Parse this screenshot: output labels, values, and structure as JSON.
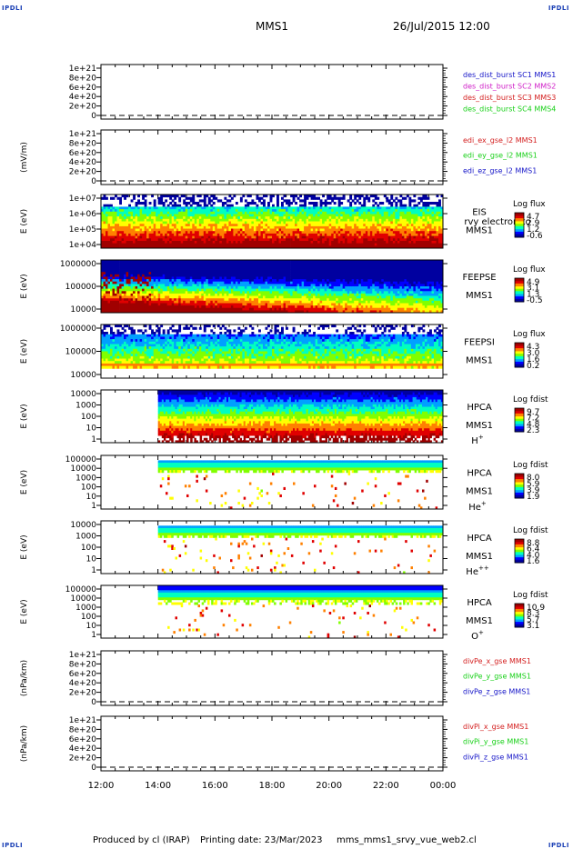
{
  "header": {
    "corner_tag": "IPDLI",
    "spacecraft": "MMS1",
    "datetime": "26/Jul/2015 12:00"
  },
  "footer": {
    "producer": "Produced by cl (IRAP)",
    "printing_date": "Printing date: 23/Mar/2023",
    "script": "mms_mms1_srvy_vue_web2.cl"
  },
  "colors": {
    "red": "#d42020",
    "magenta": "#d020c8",
    "green": "#18d018",
    "blue": "#1515c8",
    "colormap": [
      "#0000a0",
      "#0000ff",
      "#00a0ff",
      "#00ffc0",
      "#80ff00",
      "#ffff00",
      "#ff8000",
      "#e00000",
      "#a00000"
    ]
  },
  "time_axis": {
    "start": "12:00",
    "end": "00:00",
    "ticks": [
      "12:00",
      "14:00",
      "16:00",
      "18:00",
      "20:00",
      "22:00",
      "00:00"
    ]
  },
  "chart_data": [
    {
      "id": "des",
      "type": "line",
      "ylabel": "",
      "yticks": [
        "1e+21",
        "8e+20",
        "6e+20",
        "4e+20",
        "2e+20",
        "0"
      ],
      "ylim": [
        0,
        1e+21
      ],
      "series": [
        {
          "name": "des_dist_burst SC1 MMS1",
          "color": "#1515c8",
          "values": []
        },
        {
          "name": "des_dist_burst SC2 MMS2",
          "color": "#d020c8",
          "values": []
        },
        {
          "name": "des_dist_burst SC3 MMS3",
          "color": "#d42020",
          "values": []
        },
        {
          "name": "des_dist_burst SC4 MMS4",
          "color": "#18d018",
          "values": []
        }
      ]
    },
    {
      "id": "edi",
      "type": "line",
      "ylabel": "(mV/m)",
      "yticks": [
        "1e+21",
        "8e+20",
        "6e+20",
        "4e+20",
        "2e+20",
        "0"
      ],
      "ylim": [
        0,
        1e+21
      ],
      "series": [
        {
          "name": "edi_ex_gse_l2 MMS1",
          "color": "#d42020",
          "values": []
        },
        {
          "name": "edi_ey_gse_l2 MMS1",
          "color": "#18d018",
          "values": []
        },
        {
          "name": "edi_ez_gse_l2 MMS1",
          "color": "#1515c8",
          "values": []
        }
      ]
    },
    {
      "id": "eis",
      "type": "heatmap",
      "ylabel": "E (eV)",
      "log_y": true,
      "yticks": [
        "1e+07",
        "1e+06",
        "1e+05",
        "1e+04"
      ],
      "ylim": [
        10000.0,
        10000000.0
      ],
      "instrument": [
        "EIS",
        "MMS1"
      ],
      "overlay": "rvy electron to",
      "cbar_title": "Log flux",
      "cbar_ticks": [
        "4.7",
        "2.9",
        "1.2",
        "-0.6"
      ]
    },
    {
      "id": "feepse",
      "type": "heatmap",
      "ylabel": "E (eV)",
      "log_y": true,
      "yticks": [
        "1000000",
        "100000",
        "10000"
      ],
      "ylim": [
        10000.0,
        1000000.0
      ],
      "instrument": [
        "FEEPSE",
        "MMS1"
      ],
      "cbar_title": "Log flux",
      "cbar_ticks": [
        "4.9",
        "3.1",
        "1.3",
        "-0.5"
      ]
    },
    {
      "id": "feepsi",
      "type": "heatmap",
      "ylabel": "E (eV)",
      "log_y": true,
      "yticks": [
        "1000000",
        "100000",
        "10000"
      ],
      "ylim": [
        10000.0,
        1000000.0
      ],
      "instrument": [
        "FEEPSI",
        "MMS1"
      ],
      "cbar_title": "Log flux",
      "cbar_ticks": [
        "4.3",
        "3.0",
        "1.6",
        "0.2"
      ]
    },
    {
      "id": "hpca_h",
      "type": "heatmap",
      "ylabel": "E (eV)",
      "log_y": true,
      "yticks": [
        "10000",
        "1000",
        "100",
        "10",
        "1"
      ],
      "ylim": [
        1,
        40000
      ],
      "instrument": [
        "HPCA",
        "MMS1"
      ],
      "species": "H",
      "species_sup": "+",
      "cbar_title": "Log fdist",
      "cbar_ticks": [
        "9.7",
        "7.2",
        "4.8",
        "2.3"
      ]
    },
    {
      "id": "hpca_he1",
      "type": "heatmap",
      "ylabel": "E (eV)",
      "log_y": true,
      "yticks": [
        "100000",
        "10000",
        "1000",
        "100",
        "10",
        "1"
      ],
      "ylim": [
        1,
        100000
      ],
      "instrument": [
        "HPCA",
        "MMS1"
      ],
      "species": "He",
      "species_sup": "+",
      "cbar_title": "Log fdist",
      "cbar_ticks": [
        "8.0",
        "5.9",
        "3.9",
        "1.9"
      ]
    },
    {
      "id": "hpca_he2",
      "type": "heatmap",
      "ylabel": "E (eV)",
      "log_y": true,
      "yticks": [
        "10000",
        "1000",
        "100",
        "10",
        "1"
      ],
      "ylim": [
        1,
        40000
      ],
      "instrument": [
        "HPCA",
        "MMS1"
      ],
      "species": "He",
      "species_sup": "++",
      "cbar_title": "Log fdist",
      "cbar_ticks": [
        "8.8",
        "6.4",
        "4.0",
        "1.6"
      ]
    },
    {
      "id": "hpca_o",
      "type": "heatmap",
      "ylabel": "E (eV)",
      "log_y": true,
      "yticks": [
        "100000",
        "10000",
        "1000",
        "100",
        "10",
        "1"
      ],
      "ylim": [
        1,
        100000
      ],
      "instrument": [
        "HPCA",
        "MMS1"
      ],
      "species": "O",
      "species_sup": "+",
      "cbar_title": "Log fdist",
      "cbar_ticks": [
        "10.9",
        "8.3",
        "5.7",
        "3.1"
      ]
    },
    {
      "id": "divpe",
      "type": "line",
      "ylabel": "(nPa/km)",
      "yticks": [
        "1e+21",
        "8e+20",
        "6e+20",
        "4e+20",
        "2e+20",
        "0"
      ],
      "ylim": [
        0,
        1e+21
      ],
      "series": [
        {
          "name": "divPe_x_gse MMS1",
          "color": "#d42020",
          "values": []
        },
        {
          "name": "divPe_y_gse MMS1",
          "color": "#18d018",
          "values": []
        },
        {
          "name": "divPe_z_gse MMS1",
          "color": "#1515c8",
          "values": []
        }
      ]
    },
    {
      "id": "divpi",
      "type": "line",
      "ylabel": "(nPa/km)",
      "yticks": [
        "1e+21",
        "8e+20",
        "6e+20",
        "4e+20",
        "2e+20",
        "0"
      ],
      "ylim": [
        0,
        1e+21
      ],
      "series": [
        {
          "name": "divPi_x_gse MMS1",
          "color": "#d42020",
          "values": []
        },
        {
          "name": "divPi_y_gse MMS1",
          "color": "#18d018",
          "values": []
        },
        {
          "name": "divPi_z_gse MMS1",
          "color": "#1515c8",
          "values": []
        }
      ]
    }
  ]
}
